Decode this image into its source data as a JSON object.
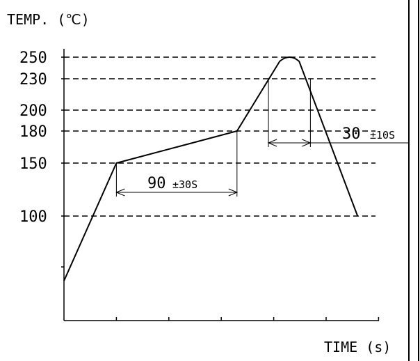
{
  "chart_data": {
    "type": "line",
    "title": "",
    "ylabel": "TEMP. (℃)",
    "xlabel": "TIME (s)",
    "y_ticks": [
      {
        "value": 250,
        "label": "250"
      },
      {
        "value": 230,
        "label": "230"
      },
      {
        "value": 200,
        "label": "200"
      },
      {
        "value": 180,
        "label": "180"
      },
      {
        "value": 150,
        "label": "150"
      },
      {
        "value": 100,
        "label": "100"
      }
    ],
    "series": [
      {
        "points": [
          {
            "x": 0,
            "y": 60
          },
          {
            "x": 1,
            "y": 150
          },
          {
            "x": 3.3,
            "y": 180
          },
          {
            "x": 4.3,
            "y": 250
          },
          {
            "x": 5.6,
            "y": 100
          }
        ]
      }
    ],
    "annotations": [
      {
        "label": "90",
        "tolerance": "±30S",
        "from_x": 1,
        "to_x": 3.3,
        "at_y": 150
      },
      {
        "label": "30",
        "tolerance": "±10S",
        "from_x": 3.9,
        "to_x": 4.7,
        "at_y": 230
      }
    ],
    "grid": "dashed horizontal reference lines at labeled temperatures",
    "legend": "none"
  }
}
